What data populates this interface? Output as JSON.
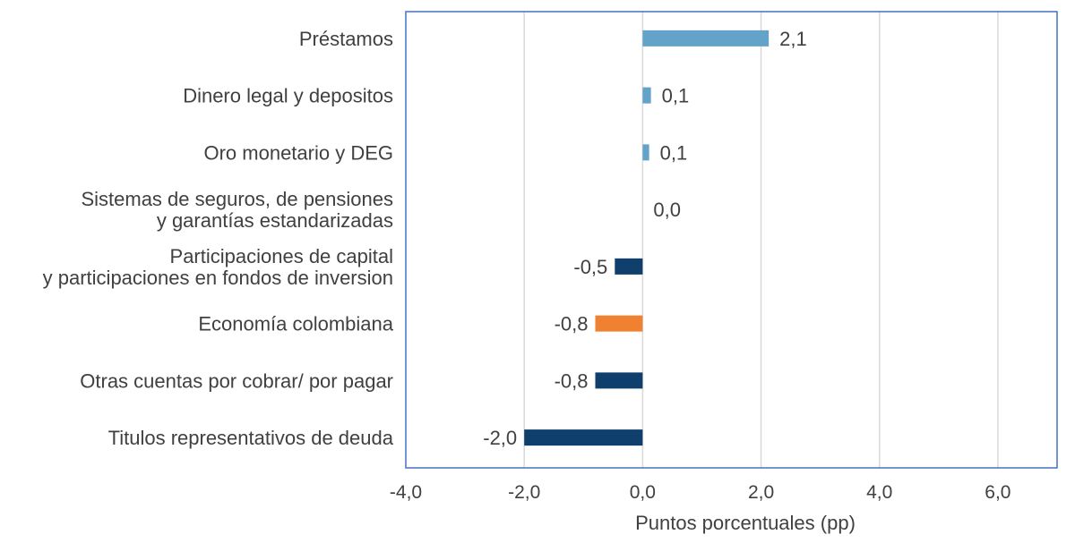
{
  "chart_data": {
    "type": "bar",
    "orientation": "horizontal",
    "title": "",
    "xlabel": "Puntos porcentuales (pp)",
    "ylabel": "",
    "xlim": [
      -4,
      7
    ],
    "xticks": [
      -4,
      -2,
      0,
      2,
      4,
      6
    ],
    "xtick_labels": [
      "-4,0",
      "-2,0",
      "0,0",
      "2,0",
      "4,0",
      "6,0"
    ],
    "grid": "vertical",
    "legend": "none",
    "categories": [
      [
        "Préstamos"
      ],
      [
        "Dinero legal y depositos"
      ],
      [
        "Oro monetario y DEG"
      ],
      [
        "Sistemas de seguros, de pensiones",
        "y garantías estandarizadas"
      ],
      [
        "Participaciones de capital",
        "y participaciones en fondos de inversion"
      ],
      [
        "Economía colombiana"
      ],
      [
        "Otras cuentas por cobrar/ por pagar"
      ],
      [
        "Titulos representativos de deuda"
      ]
    ],
    "values": [
      2.13,
      0.14,
      0.11,
      0.0,
      -0.47,
      -0.8,
      -0.8,
      -2.0
    ],
    "data_labels": [
      "2,1",
      "0,1",
      "0,1",
      "0,0",
      "-0,5",
      "-0,8",
      "-0,8",
      "-2,0"
    ],
    "bar_colors": [
      "#64A3C9",
      "#64A3C9",
      "#64A3C9",
      "#64A3C9",
      "#0F3F6C",
      "#F08131",
      "#0F3F6C",
      "#0F3F6C"
    ],
    "colors": {
      "positive": "#64A3C9",
      "negative": "#0F3F6C",
      "highlight": "#F08131",
      "plot_border": "#4472C4",
      "grid": "#D9D9D9"
    }
  }
}
